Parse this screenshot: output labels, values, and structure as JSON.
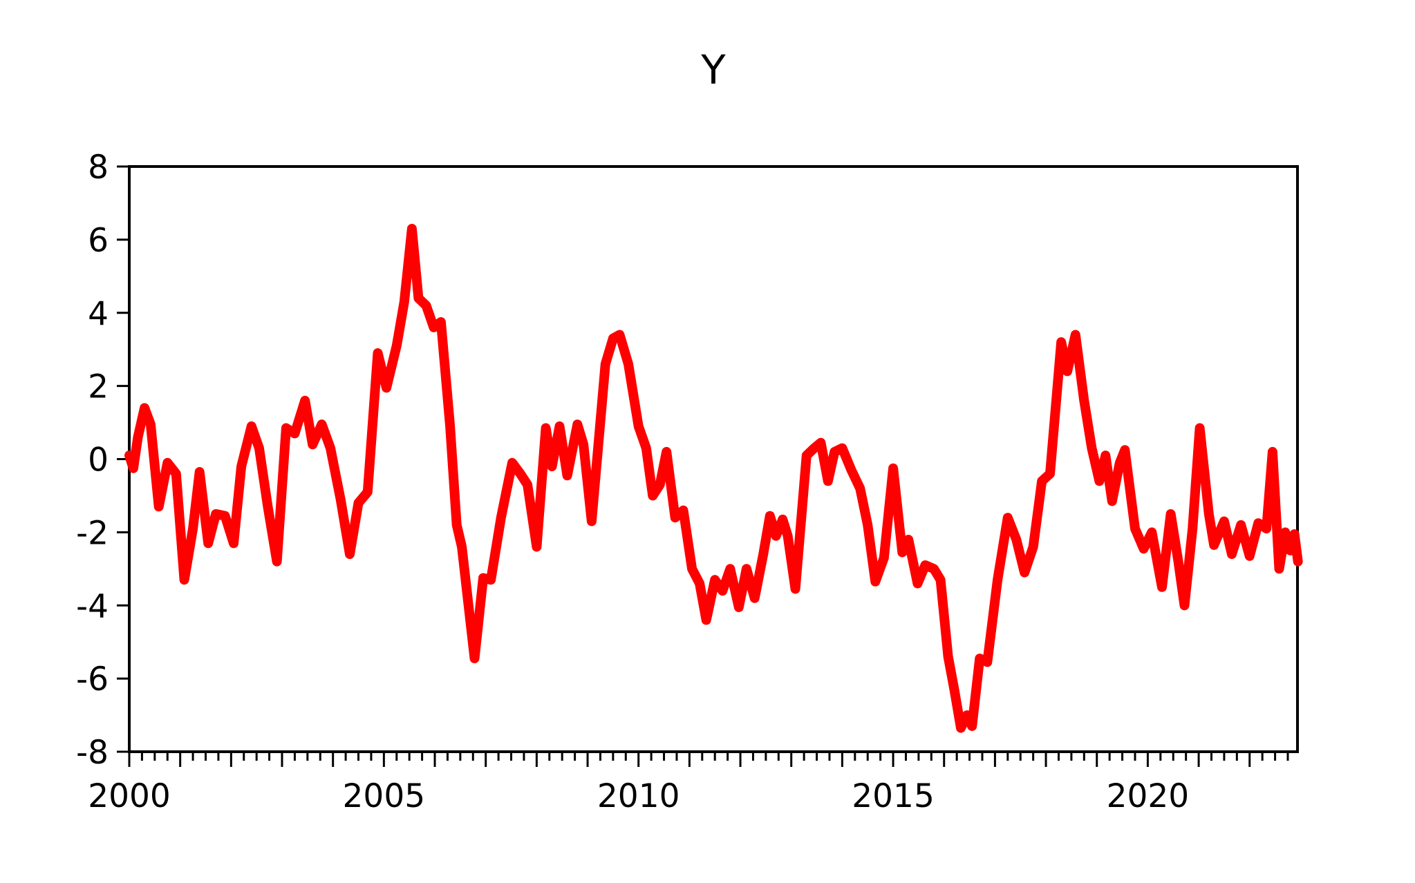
{
  "title": "Y",
  "chart_data": {
    "type": "line",
    "title": "Y",
    "xlabel": "",
    "ylabel": "",
    "legend": "none",
    "grid": "off",
    "line_color": "#ff0000",
    "axis_color": "#000000",
    "background_color": "#ffffff",
    "ylim": [
      -8,
      8
    ],
    "y_ticks": [
      8,
      6,
      4,
      2,
      0,
      -2,
      -4,
      -6,
      -8
    ],
    "x_axis": {
      "start": 2000.0,
      "end": 2022.94,
      "labels": [
        2000,
        2005,
        2010,
        2015,
        2020
      ],
      "major_tick_interval_years": 1,
      "minor_tick_interval_years": 0.25
    },
    "series": [
      {
        "name": "Y",
        "points": [
          [
            2000.0,
            0.1
          ],
          [
            2000.08,
            -0.25
          ],
          [
            2000.17,
            0.6
          ],
          [
            2000.3,
            1.4
          ],
          [
            2000.42,
            0.95
          ],
          [
            2000.58,
            -1.3
          ],
          [
            2000.75,
            -0.1
          ],
          [
            2000.92,
            -0.4
          ],
          [
            2001.08,
            -3.3
          ],
          [
            2001.25,
            -1.9
          ],
          [
            2001.38,
            -0.35
          ],
          [
            2001.55,
            -2.3
          ],
          [
            2001.7,
            -1.5
          ],
          [
            2001.88,
            -1.55
          ],
          [
            2002.05,
            -2.3
          ],
          [
            2002.2,
            -0.2
          ],
          [
            2002.4,
            0.9
          ],
          [
            2002.55,
            0.3
          ],
          [
            2002.72,
            -1.3
          ],
          [
            2002.9,
            -2.8
          ],
          [
            2003.08,
            0.85
          ],
          [
            2003.25,
            0.7
          ],
          [
            2003.45,
            1.6
          ],
          [
            2003.6,
            0.4
          ],
          [
            2003.78,
            0.95
          ],
          [
            2003.95,
            0.3
          ],
          [
            2004.15,
            -1.1
          ],
          [
            2004.33,
            -2.6
          ],
          [
            2004.5,
            -1.2
          ],
          [
            2004.68,
            -0.9
          ],
          [
            2004.88,
            2.9
          ],
          [
            2005.05,
            1.95
          ],
          [
            2005.25,
            3.1
          ],
          [
            2005.4,
            4.3
          ],
          [
            2005.55,
            6.3
          ],
          [
            2005.68,
            4.4
          ],
          [
            2005.83,
            4.2
          ],
          [
            2005.98,
            3.6
          ],
          [
            2006.12,
            3.75
          ],
          [
            2006.3,
            0.9
          ],
          [
            2006.43,
            -1.8
          ],
          [
            2006.53,
            -2.4
          ],
          [
            2006.78,
            -5.45
          ],
          [
            2006.95,
            -3.25
          ],
          [
            2007.1,
            -3.3
          ],
          [
            2007.3,
            -1.6
          ],
          [
            2007.52,
            -0.1
          ],
          [
            2007.68,
            -0.4
          ],
          [
            2007.82,
            -0.7
          ],
          [
            2008.0,
            -2.4
          ],
          [
            2008.18,
            0.85
          ],
          [
            2008.3,
            -0.2
          ],
          [
            2008.45,
            0.9
          ],
          [
            2008.6,
            -0.45
          ],
          [
            2008.8,
            0.95
          ],
          [
            2008.92,
            0.4
          ],
          [
            2009.08,
            -1.7
          ],
          [
            2009.35,
            2.6
          ],
          [
            2009.5,
            3.3
          ],
          [
            2009.63,
            3.4
          ],
          [
            2009.8,
            2.6
          ],
          [
            2010.0,
            0.9
          ],
          [
            2010.15,
            0.3
          ],
          [
            2010.28,
            -1.0
          ],
          [
            2010.42,
            -0.7
          ],
          [
            2010.55,
            0.2
          ],
          [
            2010.72,
            -1.6
          ],
          [
            2010.88,
            -1.4
          ],
          [
            2011.05,
            -3.0
          ],
          [
            2011.2,
            -3.4
          ],
          [
            2011.33,
            -4.4
          ],
          [
            2011.5,
            -3.3
          ],
          [
            2011.65,
            -3.6
          ],
          [
            2011.8,
            -3.0
          ],
          [
            2011.97,
            -4.05
          ],
          [
            2012.12,
            -3.0
          ],
          [
            2012.28,
            -3.8
          ],
          [
            2012.45,
            -2.6
          ],
          [
            2012.58,
            -1.55
          ],
          [
            2012.7,
            -2.1
          ],
          [
            2012.83,
            -1.65
          ],
          [
            2012.93,
            -2.1
          ],
          [
            2013.08,
            -3.55
          ],
          [
            2013.3,
            0.1
          ],
          [
            2013.45,
            0.3
          ],
          [
            2013.58,
            0.45
          ],
          [
            2013.72,
            -0.6
          ],
          [
            2013.85,
            0.2
          ],
          [
            2014.0,
            0.3
          ],
          [
            2014.18,
            -0.3
          ],
          [
            2014.35,
            -0.8
          ],
          [
            2014.5,
            -1.8
          ],
          [
            2014.65,
            -3.35
          ],
          [
            2014.82,
            -2.7
          ],
          [
            2015.0,
            -0.25
          ],
          [
            2015.18,
            -2.55
          ],
          [
            2015.3,
            -2.2
          ],
          [
            2015.48,
            -3.4
          ],
          [
            2015.63,
            -2.9
          ],
          [
            2015.8,
            -3.0
          ],
          [
            2015.93,
            -3.3
          ],
          [
            2016.08,
            -5.4
          ],
          [
            2016.2,
            -6.3
          ],
          [
            2016.33,
            -7.35
          ],
          [
            2016.45,
            -7.0
          ],
          [
            2016.55,
            -7.3
          ],
          [
            2016.7,
            -5.45
          ],
          [
            2016.85,
            -5.55
          ],
          [
            2017.05,
            -3.3
          ],
          [
            2017.25,
            -1.6
          ],
          [
            2017.42,
            -2.2
          ],
          [
            2017.58,
            -3.1
          ],
          [
            2017.75,
            -2.4
          ],
          [
            2017.92,
            -0.6
          ],
          [
            2018.08,
            -0.4
          ],
          [
            2018.3,
            3.2
          ],
          [
            2018.42,
            2.4
          ],
          [
            2018.58,
            3.4
          ],
          [
            2018.75,
            1.6
          ],
          [
            2018.9,
            0.3
          ],
          [
            2019.05,
            -0.6
          ],
          [
            2019.17,
            0.1
          ],
          [
            2019.3,
            -1.15
          ],
          [
            2019.45,
            -0.1
          ],
          [
            2019.55,
            0.25
          ],
          [
            2019.75,
            -1.9
          ],
          [
            2019.92,
            -2.45
          ],
          [
            2020.08,
            -2.0
          ],
          [
            2020.28,
            -3.5
          ],
          [
            2020.45,
            -1.5
          ],
          [
            2020.6,
            -2.8
          ],
          [
            2020.72,
            -4.0
          ],
          [
            2020.88,
            -1.9
          ],
          [
            2021.02,
            0.85
          ],
          [
            2021.2,
            -1.5
          ],
          [
            2021.3,
            -2.35
          ],
          [
            2021.5,
            -1.7
          ],
          [
            2021.65,
            -2.6
          ],
          [
            2021.83,
            -1.8
          ],
          [
            2022.0,
            -2.65
          ],
          [
            2022.17,
            -1.75
          ],
          [
            2022.33,
            -1.9
          ],
          [
            2022.45,
            0.2
          ],
          [
            2022.58,
            -3.0
          ],
          [
            2022.7,
            -2.0
          ],
          [
            2022.8,
            -2.5
          ],
          [
            2022.88,
            -2.05
          ],
          [
            2022.95,
            -2.8
          ]
        ]
      }
    ]
  }
}
